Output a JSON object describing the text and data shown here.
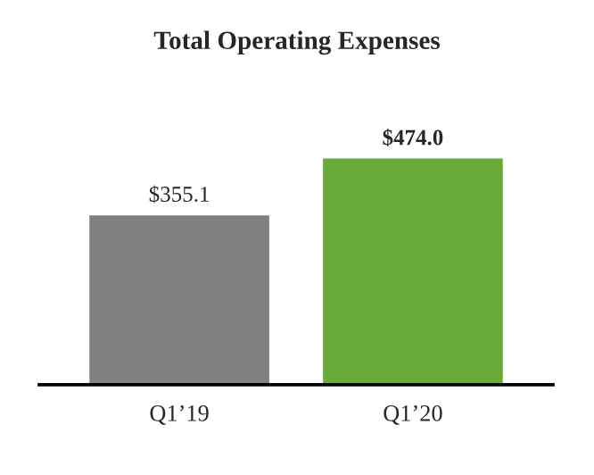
{
  "chart_data": {
    "type": "bar",
    "title": "Total Operating Expenses",
    "categories": [
      "Q1’19",
      "Q1’20"
    ],
    "values": [
      355.1,
      474.0
    ],
    "colors": [
      "#808080",
      "#6aaa3a"
    ],
    "value_labels": [
      "$355.1",
      "$474.0"
    ]
  }
}
